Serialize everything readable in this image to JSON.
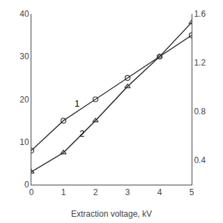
{
  "chart_data": {
    "type": "line",
    "xlabel": "Extraction voltage, kV",
    "xlim": [
      0,
      5
    ],
    "xticks": [
      0,
      1,
      2,
      3,
      4,
      5
    ],
    "ylim": [
      0,
      40
    ],
    "yticks": [
      0,
      10,
      20,
      30,
      40
    ],
    "y2lim": [
      0.2,
      1.6
    ],
    "y2ticks": [
      0.4,
      0.8,
      1.2,
      1.6
    ],
    "grid": false,
    "series": [
      {
        "x": [
          0,
          1,
          2,
          3,
          4,
          5
        ],
        "values": [
          8,
          15,
          20,
          25,
          30,
          35
        ],
        "color": "#333333",
        "marker": "circle-open"
      },
      {
        "x": [
          0,
          1,
          2,
          3,
          4,
          5
        ],
        "values": [
          3,
          7.5,
          15,
          23,
          30,
          38
        ],
        "color": "#333333",
        "marker": "triangle-up-open"
      }
    ],
    "annotations": [
      {
        "text": "1",
        "x": 1.3,
        "y": 17.5
      },
      {
        "text": "2",
        "x": 1.45,
        "y": 10.5
      }
    ]
  }
}
